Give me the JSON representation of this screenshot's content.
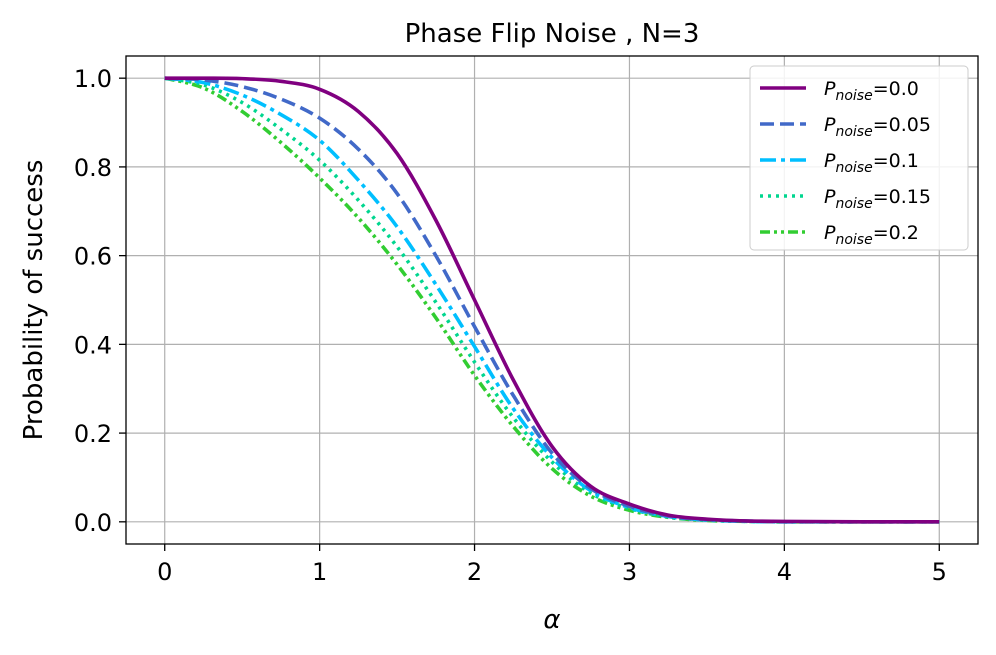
{
  "chart_data": {
    "type": "line",
    "title": "Phase Flip Noise , N=3",
    "xlabel": "α",
    "ylabel": "Probability of success",
    "xlim": [
      -0.25,
      5.25
    ],
    "ylim": [
      -0.05,
      1.05
    ],
    "xticks": [
      0,
      1,
      2,
      3,
      4,
      5
    ],
    "xtick_labels": [
      "0",
      "1",
      "2",
      "3",
      "4",
      "5"
    ],
    "yticks": [
      0.0,
      0.2,
      0.4,
      0.6,
      0.8,
      1.0
    ],
    "ytick_labels": [
      "0.0",
      "0.2",
      "0.4",
      "0.6",
      "0.8",
      "1.0"
    ],
    "grid": true,
    "legend_position": "top-right",
    "x": [
      0,
      0.25,
      0.5,
      0.75,
      1.0,
      1.25,
      1.5,
      1.75,
      2.0,
      2.25,
      2.5,
      2.75,
      3.0,
      3.25,
      3.5,
      3.75,
      4.0,
      4.5,
      5.0
    ],
    "series": [
      {
        "name_prefix": "P",
        "name_sub": "noise",
        "name_suffix": "=0.0",
        "color": "#800080",
        "dash": "solid",
        "values": [
          1.0,
          1.0,
          0.999,
          0.993,
          0.975,
          0.925,
          0.83,
          0.68,
          0.5,
          0.32,
          0.17,
          0.08,
          0.04,
          0.015,
          0.006,
          0.002,
          0.001,
          0.0,
          0.0
        ]
      },
      {
        "name_prefix": "P",
        "name_sub": "noise",
        "name_suffix": "=0.05",
        "color": "#4169c8",
        "dash": "dashed",
        "values": [
          1.0,
          0.996,
          0.981,
          0.953,
          0.91,
          0.84,
          0.74,
          0.6,
          0.44,
          0.285,
          0.155,
          0.075,
          0.035,
          0.013,
          0.005,
          0.002,
          0.0,
          0.0,
          0.0
        ]
      },
      {
        "name_prefix": "P",
        "name_sub": "noise",
        "name_suffix": "=0.1",
        "color": "#00bfff",
        "dash": "dashdot",
        "values": [
          1.0,
          0.99,
          0.962,
          0.918,
          0.86,
          0.77,
          0.665,
          0.535,
          0.395,
          0.255,
          0.145,
          0.07,
          0.032,
          0.012,
          0.004,
          0.001,
          0.0,
          0.0,
          0.0
        ]
      },
      {
        "name_prefix": "P",
        "name_sub": "noise",
        "name_suffix": "=0.15",
        "color": "#00d68f",
        "dash": "dotted",
        "values": [
          1.0,
          0.985,
          0.945,
          0.885,
          0.815,
          0.725,
          0.62,
          0.495,
          0.36,
          0.235,
          0.135,
          0.065,
          0.03,
          0.011,
          0.004,
          0.001,
          0.0,
          0.0,
          0.0
        ]
      },
      {
        "name_prefix": "P",
        "name_sub": "noise",
        "name_suffix": "=0.2",
        "color": "#32cd32",
        "dash": "dashdotdot",
        "values": [
          1.0,
          0.978,
          0.925,
          0.855,
          0.775,
          0.685,
          0.58,
          0.46,
          0.33,
          0.215,
          0.12,
          0.058,
          0.026,
          0.01,
          0.003,
          0.001,
          0.0,
          0.0,
          0.0
        ]
      }
    ]
  }
}
